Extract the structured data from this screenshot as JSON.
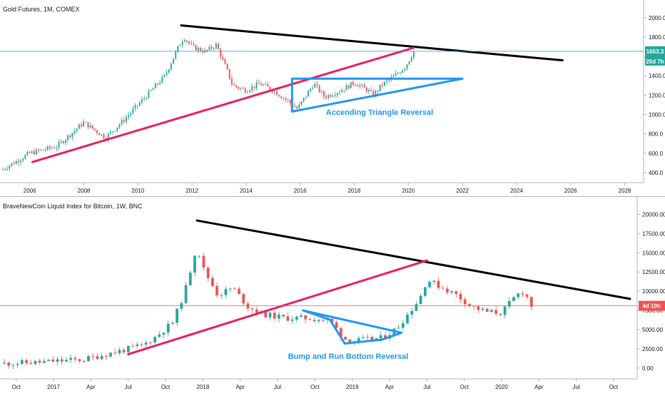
{
  "panels": [
    {
      "title": "Gold Futures, 1M, COMEX",
      "x_ticks": [
        "2006",
        "2008",
        "2010",
        "2012",
        "2014",
        "2016",
        "2018",
        "2020",
        "2022",
        "2024",
        "2026",
        "2028"
      ],
      "y_ticks": [
        "2000.0",
        "1800.0",
        "1600.0",
        "1400.0",
        "1200.0",
        "1000.0",
        "800.0",
        "600.0",
        "400.0"
      ],
      "price_label": "1653.3",
      "countdown_label": "20d 7h",
      "annotation": "Accending Triangle Reversal",
      "colors": {
        "up": "#26a69a",
        "down": "#ef5350",
        "price_line": "#2196f3",
        "trend_up": "#e91e63",
        "trend_down": "#000000",
        "pattern": "#2196f3"
      }
    },
    {
      "title": "BraveNewCoin Liquid Index for Bitcoin, 1W, BNC",
      "x_ticks": [
        "Oct",
        "2017",
        "Apr",
        "Jul",
        "Oct",
        "2018",
        "Apr",
        "Jul",
        "Oct",
        "2019",
        "Apr",
        "Jul",
        "Oct",
        "2020",
        "Apr",
        "Jul",
        "Oct"
      ],
      "y_ticks": [
        "20000.00",
        "17500.00",
        "15000.00",
        "12500.00",
        "10000.00",
        "7500.00",
        "5000.00",
        "2500.00",
        "0.00"
      ],
      "price_label": "4d 10h",
      "annotation": "Bump and Run Bottom Reversal",
      "colors": {
        "up": "#26a69a",
        "down": "#ef5350",
        "price_line": "#ef5350",
        "trend_up": "#e91e63",
        "trend_down": "#000000",
        "pattern": "#2196f3"
      }
    }
  ],
  "chart_data": [
    {
      "type": "candlestick",
      "title": "Gold Futures, 1M, COMEX",
      "x_range": [
        2004.9,
        2028.5
      ],
      "ylim": [
        300,
        2080
      ],
      "last_price": 1653.3,
      "series": [
        {
          "values": [
            [
              2005,
              435
            ],
            [
              2006,
              600
            ],
            [
              2007,
              670
            ],
            [
              2008,
              920
            ],
            [
              2008.8,
              760
            ],
            [
              2009.5,
              950
            ],
            [
              2010,
              1100
            ],
            [
              2010.5,
              1250
            ],
            [
              2011,
              1400
            ],
            [
              2011.5,
              1700
            ],
            [
              2011.7,
              1800
            ],
            [
              2012,
              1700
            ],
            [
              2012.5,
              1650
            ],
            [
              2012.9,
              1720
            ],
            [
              2013.3,
              1450
            ],
            [
              2013.5,
              1300
            ],
            [
              2014,
              1250
            ],
            [
              2014.5,
              1320
            ],
            [
              2015,
              1250
            ],
            [
              2015.5,
              1150
            ],
            [
              2015.9,
              1060
            ],
            [
              2016.5,
              1320
            ],
            [
              2016.9,
              1180
            ],
            [
              2017.5,
              1250
            ],
            [
              2018,
              1330
            ],
            [
              2018.5,
              1250
            ],
            [
              2018.7,
              1200
            ],
            [
              2019,
              1300
            ],
            [
              2019.5,
              1400
            ],
            [
              2019.9,
              1500
            ],
            [
              2020.2,
              1650
            ]
          ]
        }
      ],
      "trendlines": [
        {
          "name": "resistance",
          "from": [
            2011.6,
            1920
          ],
          "to": [
            2025.7,
            1560
          ]
        },
        {
          "name": "support",
          "from": [
            2006.1,
            510
          ],
          "to": [
            2020.2,
            1690
          ]
        }
      ],
      "pattern": {
        "label": "Accending Triangle Reversal",
        "points": [
          [
            2015.7,
            1370
          ],
          [
            2022.0,
            1370
          ],
          [
            2015.7,
            1030
          ]
        ]
      }
    },
    {
      "type": "candlestick",
      "title": "BraveNewCoin Liquid Index for Bitcoin, 1W, BNC",
      "x_range": [
        2016.67,
        2021.0
      ],
      "ylim": [
        -1000,
        21000
      ],
      "last_price": 8100,
      "series": [
        {
          "values": [
            [
              2016.67,
              600
            ],
            [
              2016.9,
              750
            ],
            [
              2017.0,
              900
            ],
            [
              2017.2,
              1100
            ],
            [
              2017.35,
              1800
            ],
            [
              2017.5,
              2500
            ],
            [
              2017.6,
              3000
            ],
            [
              2017.7,
              4300
            ],
            [
              2017.8,
              6000
            ],
            [
              2017.88,
              10000
            ],
            [
              2017.96,
              16000
            ],
            [
              2018.0,
              13000
            ],
            [
              2018.1,
              9500
            ],
            [
              2018.2,
              10500
            ],
            [
              2018.3,
              8000
            ],
            [
              2018.4,
              7000
            ],
            [
              2018.55,
              6500
            ],
            [
              2018.7,
              6500
            ],
            [
              2018.85,
              6200
            ],
            [
              2018.95,
              3800
            ],
            [
              2019.0,
              3500
            ],
            [
              2019.2,
              3900
            ],
            [
              2019.3,
              5200
            ],
            [
              2019.45,
              9000
            ],
            [
              2019.5,
              11500
            ],
            [
              2019.6,
              10500
            ],
            [
              2019.7,
              9500
            ],
            [
              2019.8,
              8000
            ],
            [
              2019.9,
              7300
            ],
            [
              2020.0,
              7200
            ],
            [
              2020.1,
              9500
            ],
            [
              2020.15,
              10000
            ],
            [
              2020.2,
              8100
            ]
          ]
        }
      ],
      "trendlines": [
        {
          "name": "resistance",
          "from": [
            2017.96,
            19200
          ],
          "to": [
            2020.86,
            9000
          ]
        },
        {
          "name": "support",
          "from": [
            2017.5,
            1800
          ],
          "to": [
            2019.5,
            14000
          ]
        }
      ],
      "pattern": {
        "label": "Bump and Run Bottom Reversal",
        "points": [
          [
            2018.67,
            7500
          ],
          [
            2018.85,
            6300
          ],
          [
            2018.95,
            3200
          ],
          [
            2019.2,
            3700
          ],
          [
            2019.33,
            4600
          ]
        ]
      }
    }
  ]
}
